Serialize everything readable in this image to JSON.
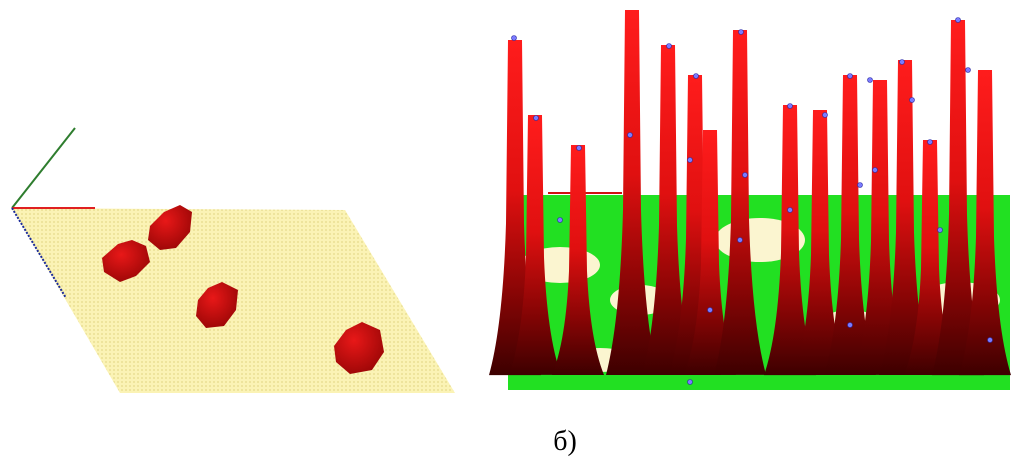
{
  "caption": "б)"
}
